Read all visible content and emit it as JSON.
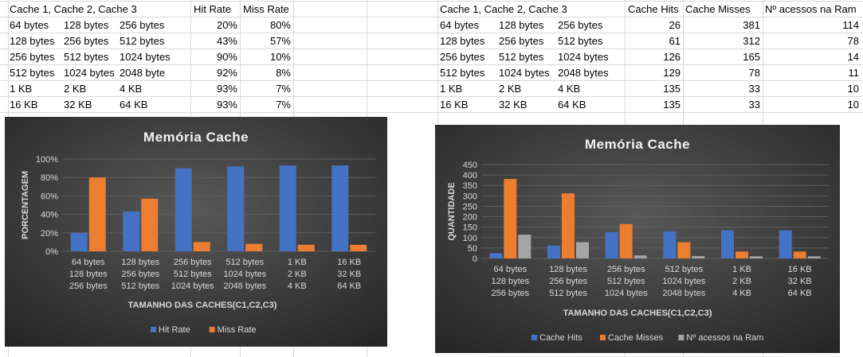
{
  "table_left": {
    "headers": [
      "Cache 1, Cache 2, Cache 3",
      "Hit Rate",
      "Miss Rate"
    ],
    "rows": [
      {
        "c1": "64 bytes",
        "c2": "128 bytes",
        "c3": "256 bytes",
        "hit": "20%",
        "miss": "80%"
      },
      {
        "c1": "128 bytes",
        "c2": "256 bytes",
        "c3": "512 bytes",
        "hit": "43%",
        "miss": "57%"
      },
      {
        "c1": "256 bytes",
        "c2": "512 bytes",
        "c3": "1024 bytes",
        "hit": "90%",
        "miss": "10%"
      },
      {
        "c1": "512 bytes",
        "c2": "1024 bytes",
        "c3": "2048 byte",
        "hit": "92%",
        "miss": "8%"
      },
      {
        "c1": "1 KB",
        "c2": "2 KB",
        "c3": "4 KB",
        "hit": "93%",
        "miss": "7%"
      },
      {
        "c1": "16 KB",
        "c2": "32 KB",
        "c3": "64 KB",
        "hit": "93%",
        "miss": "7%"
      }
    ]
  },
  "table_right": {
    "headers": [
      "Cache 1, Cache 2, Cache 3",
      "Cache Hits",
      "Cache Misses",
      "Nº acessos na Ram"
    ],
    "rows": [
      {
        "c1": "64 bytes",
        "c2": "128 bytes",
        "c3": "256 bytes",
        "hits": "26",
        "misses": "381",
        "ram": "114"
      },
      {
        "c1": "128 bytes",
        "c2": "256 bytes",
        "c3": "512 bytes",
        "hits": "61",
        "misses": "312",
        "ram": "78"
      },
      {
        "c1": "256 bytes",
        "c2": "512 bytes",
        "c3": "1024 bytes",
        "hits": "126",
        "misses": "165",
        "ram": "14"
      },
      {
        "c1": "512 bytes",
        "c2": "1024 bytes",
        "c3": "2048 bytes",
        "hits": "129",
        "misses": "78",
        "ram": "11"
      },
      {
        "c1": "1 KB",
        "c2": "2 KB",
        "c3": "4 KB",
        "hits": "135",
        "misses": "33",
        "ram": "10"
      },
      {
        "c1": "16 KB",
        "c2": "32 KB",
        "c3": "64 KB",
        "hits": "135",
        "misses": "33",
        "ram": "10"
      }
    ]
  },
  "chart_data": [
    {
      "type": "bar",
      "title": "Memória Cache",
      "xlabel": "TAMANHO DAS CACHES(C1,C2,C3)",
      "ylabel": "PORCENTAGEM",
      "categories": [
        [
          "64 bytes",
          "128 bytes",
          "256 bytes"
        ],
        [
          "128 bytes",
          "256 bytes",
          "512 bytes"
        ],
        [
          "256 bytes",
          "512 bytes",
          "1024 bytes"
        ],
        [
          "512 bytes",
          "1024 bytes",
          "2048 bytes"
        ],
        [
          "1 KB",
          "2 KB",
          "4 KB"
        ],
        [
          "16 KB",
          "32 KB",
          "64 KB"
        ]
      ],
      "yticks": [
        "0%",
        "20%",
        "40%",
        "60%",
        "80%",
        "100%"
      ],
      "ylim": [
        0,
        100
      ],
      "series": [
        {
          "name": "Hit Rate",
          "color": "#4472c4",
          "values": [
            20,
            43,
            90,
            92,
            93,
            93
          ]
        },
        {
          "name": "Miss Rate",
          "color": "#ed7d31",
          "values": [
            80,
            57,
            10,
            8,
            7,
            7
          ]
        }
      ],
      "legend": "bottom"
    },
    {
      "type": "bar",
      "title": "Memória Cache",
      "xlabel": "TAMANHO DAS CACHES(C1,C2,C3)",
      "ylabel": "QUANTIDADE",
      "categories": [
        [
          "64 bytes",
          "128 bytes",
          "256 bytes"
        ],
        [
          "128 bytes",
          "256 bytes",
          "512 bytes"
        ],
        [
          "256 bytes",
          "512 bytes",
          "1024 bytes"
        ],
        [
          "512 bytes",
          "1024 bytes",
          "2048 bytes"
        ],
        [
          "1 KB",
          "2 KB",
          "4 KB"
        ],
        [
          "16 KB",
          "32 KB",
          "64 KB"
        ]
      ],
      "yticks": [
        "0",
        "50",
        "100",
        "150",
        "200",
        "250",
        "300",
        "350",
        "400",
        "450"
      ],
      "ylim": [
        0,
        450
      ],
      "series": [
        {
          "name": "Cache Hits",
          "color": "#4472c4",
          "values": [
            26,
            61,
            126,
            129,
            135,
            135
          ]
        },
        {
          "name": "Cache Misses",
          "color": "#ed7d31",
          "values": [
            381,
            312,
            165,
            78,
            33,
            33
          ]
        },
        {
          "name": "Nº acessos na Ram",
          "color": "#a5a5a5",
          "values": [
            114,
            78,
            14,
            11,
            10,
            10
          ]
        }
      ],
      "legend": "bottom"
    }
  ]
}
